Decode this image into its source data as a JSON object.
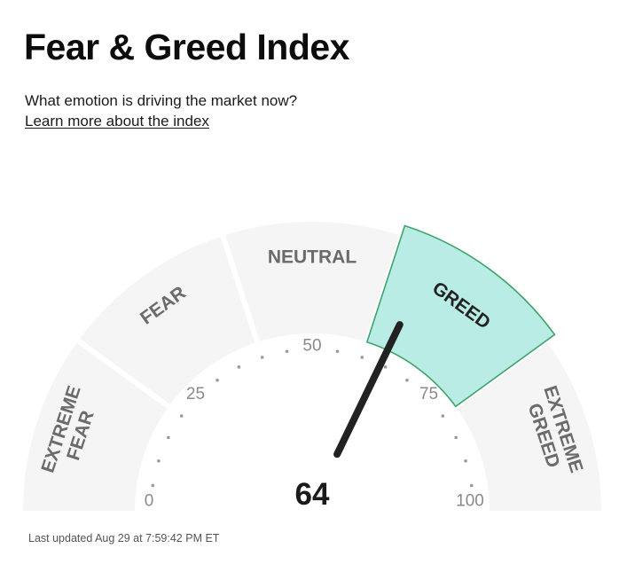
{
  "header": {
    "title": "Fear & Greed Index",
    "subtitle": "What emotion is driving the market now?",
    "learn_more_link": "Learn more about the index"
  },
  "gauge": {
    "value": 64,
    "value_text": "64",
    "min": 0,
    "max": 100,
    "active_segment": "greed",
    "segments": [
      {
        "key": "extreme-fear",
        "lines": [
          "EXTREME",
          "FEAR"
        ]
      },
      {
        "key": "fear",
        "lines": [
          "FEAR"
        ]
      },
      {
        "key": "neutral",
        "lines": [
          "NEUTRAL"
        ]
      },
      {
        "key": "greed",
        "lines": [
          "GREED"
        ]
      },
      {
        "key": "extreme-greed",
        "lines": [
          "EXTREME",
          "GREED"
        ]
      }
    ],
    "tick_labels": [
      "0",
      "25",
      "50",
      "75",
      "100"
    ]
  },
  "footer": {
    "last_updated": "Last updated Aug 29 at 7:59:42 PM ET"
  },
  "colors": {
    "segment_fill": "#f5f5f5",
    "active_fill": "#b8ece4",
    "active_stroke": "#3fa36b",
    "segment_text": "#6b6b6b",
    "active_text": "#222222",
    "needle": "#222222",
    "tick_text": "#8a8a8a",
    "dot": "#9a9a9a"
  }
}
